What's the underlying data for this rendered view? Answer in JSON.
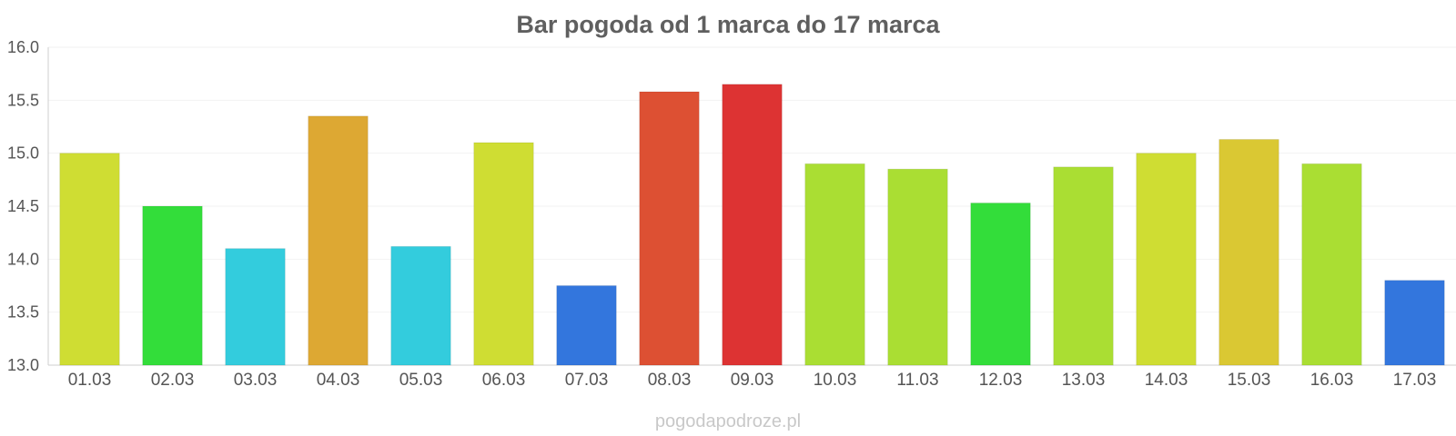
{
  "chart_data": {
    "type": "bar",
    "title": "Bar pogoda od 1 marca do 17 marca",
    "xlabel": "",
    "ylabel": "",
    "ylim": [
      13.0,
      16.0
    ],
    "yticks": [
      "13.0",
      "13.5",
      "14.0",
      "14.5",
      "15.0",
      "15.5",
      "16.0"
    ],
    "categories": [
      "01.03",
      "02.03",
      "03.03",
      "04.03",
      "05.03",
      "06.03",
      "07.03",
      "08.03",
      "09.03",
      "10.03",
      "11.03",
      "12.03",
      "13.03",
      "14.03",
      "15.03",
      "16.03",
      "17.03"
    ],
    "values": [
      15.0,
      14.5,
      14.1,
      15.35,
      14.12,
      15.1,
      13.75,
      15.58,
      15.65,
      14.9,
      14.85,
      14.53,
      14.87,
      15.0,
      15.13,
      14.9,
      13.8
    ],
    "colors": [
      "#cfdd33",
      "#33dd3a",
      "#33ccdd",
      "#dda833",
      "#33ccdd",
      "#cfdd33",
      "#3376dd",
      "#dd5033",
      "#dd3333",
      "#aade33",
      "#aade33",
      "#33dd3a",
      "#aade33",
      "#cfdd33",
      "#dac833",
      "#aade33",
      "#3376dd"
    ],
    "grid": true,
    "legend": "none"
  },
  "source_label": "pogodapodroze.pl"
}
